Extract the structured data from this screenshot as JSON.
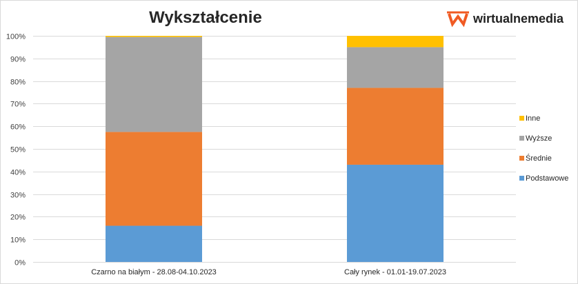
{
  "brand": {
    "name": "wirtualnemedia",
    "logo_icon": "wm-logo-icon",
    "logo_color": "#F05A23"
  },
  "chart_data": {
    "type": "bar",
    "stacked": true,
    "title": "Wykształcenie",
    "categories": [
      "Czarno na białym - 28.08-04.10.2023",
      "Cały rynek - 01.01-19.07.2023"
    ],
    "series": [
      {
        "name": "Podstawowe",
        "color": "#5B9BD5",
        "values": [
          16,
          43
        ]
      },
      {
        "name": "Średnie",
        "color": "#ED7D31",
        "values": [
          41.5,
          34
        ]
      },
      {
        "name": "Wyższe",
        "color": "#A5A5A5",
        "values": [
          42,
          18
        ]
      },
      {
        "name": "Inne",
        "color": "#FFC000",
        "values": [
          0.5,
          5
        ]
      }
    ],
    "ylim": [
      0,
      100
    ],
    "yticks": [
      "0%",
      "10%",
      "20%",
      "30%",
      "40%",
      "50%",
      "60%",
      "70%",
      "80%",
      "90%",
      "100%"
    ],
    "xlabel": "",
    "ylabel": "",
    "grid": true,
    "legend_position": "right"
  }
}
